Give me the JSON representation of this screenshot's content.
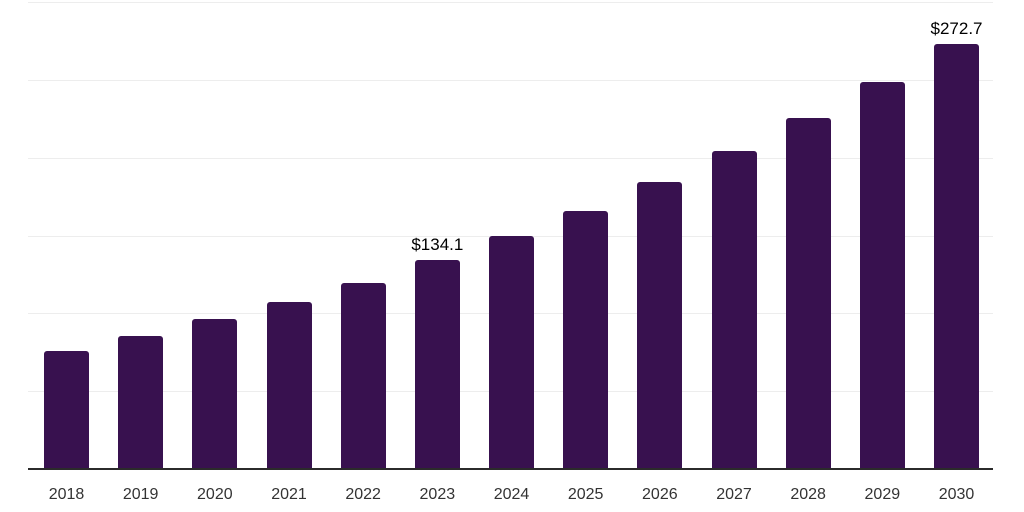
{
  "chart_data": {
    "type": "bar",
    "categories": [
      "2018",
      "2019",
      "2020",
      "2021",
      "2022",
      "2023",
      "2024",
      "2025",
      "2026",
      "2027",
      "2028",
      "2029",
      "2030"
    ],
    "values": [
      76.0,
      85.4,
      96.1,
      107.4,
      119.3,
      134.1,
      150.0,
      165.9,
      184.5,
      204.2,
      225.2,
      248.3,
      272.7
    ],
    "annotations": [
      {
        "category": "2023",
        "label": "$134.1"
      },
      {
        "category": "2030",
        "label": "$272.7"
      }
    ],
    "title": "",
    "xlabel": "",
    "ylabel": "",
    "ylim": [
      0,
      300
    ],
    "grid_step": 50,
    "grid": true,
    "legend": false,
    "colors": {
      "bar": "#38114f",
      "gridline": "#ededed",
      "axis": "#2b2b2b",
      "tick_label": "#333333",
      "value_label": "#000000"
    }
  }
}
